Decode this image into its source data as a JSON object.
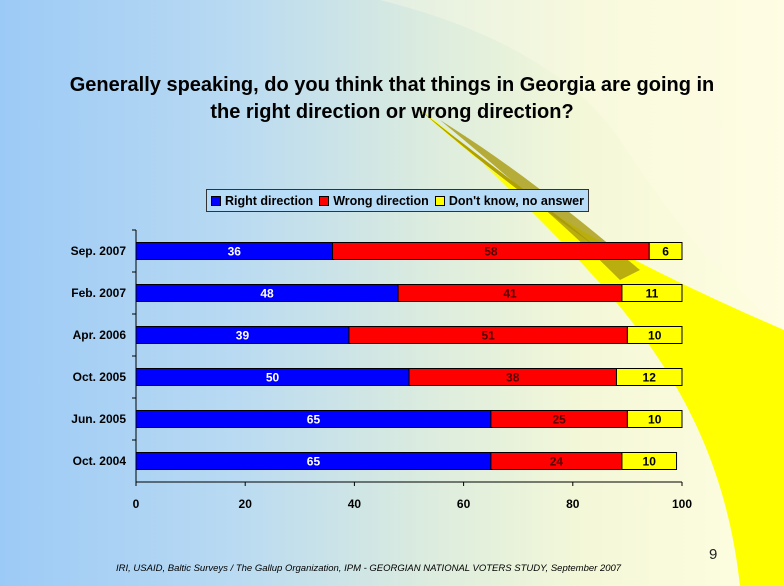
{
  "slide": {
    "title_line1": "Generally speaking, do you think that things in Georgia are going in",
    "title_line2": "the right direction or wrong direction?",
    "footer": "IRI, USAID,  Baltic Surveys / The Gallup Organization, IPM - GEORGIAN NATIONAL VOTERS STUDY, September 2007",
    "page_number": "9"
  },
  "chart_data": {
    "type": "bar",
    "orientation": "horizontal",
    "stacked": true,
    "title": "Generally speaking, do you think that things in Georgia are going in the right direction or wrong direction?",
    "categories": [
      "Sep. 2007",
      "Feb. 2007",
      "Apr. 2006",
      "Oct. 2005",
      "Jun. 2005",
      "Oct. 2004"
    ],
    "series": [
      {
        "name": "Right direction",
        "color": "#0000ff",
        "label_color": "#ffffff",
        "values": [
          36,
          48,
          39,
          50,
          65,
          65
        ]
      },
      {
        "name": "Wrong direction",
        "color": "#ff0000",
        "label_color": "#550000",
        "values": [
          58,
          41,
          51,
          38,
          25,
          24
        ]
      },
      {
        "name": "Don't know, no answer",
        "color": "#ffff00",
        "label_color": "#000000",
        "values": [
          6,
          11,
          10,
          12,
          10,
          10
        ]
      }
    ],
    "xlim": [
      0,
      100
    ],
    "xticks": [
      "0",
      "20",
      "40",
      "60",
      "80",
      "100"
    ],
    "legend": "top",
    "grid": false
  }
}
